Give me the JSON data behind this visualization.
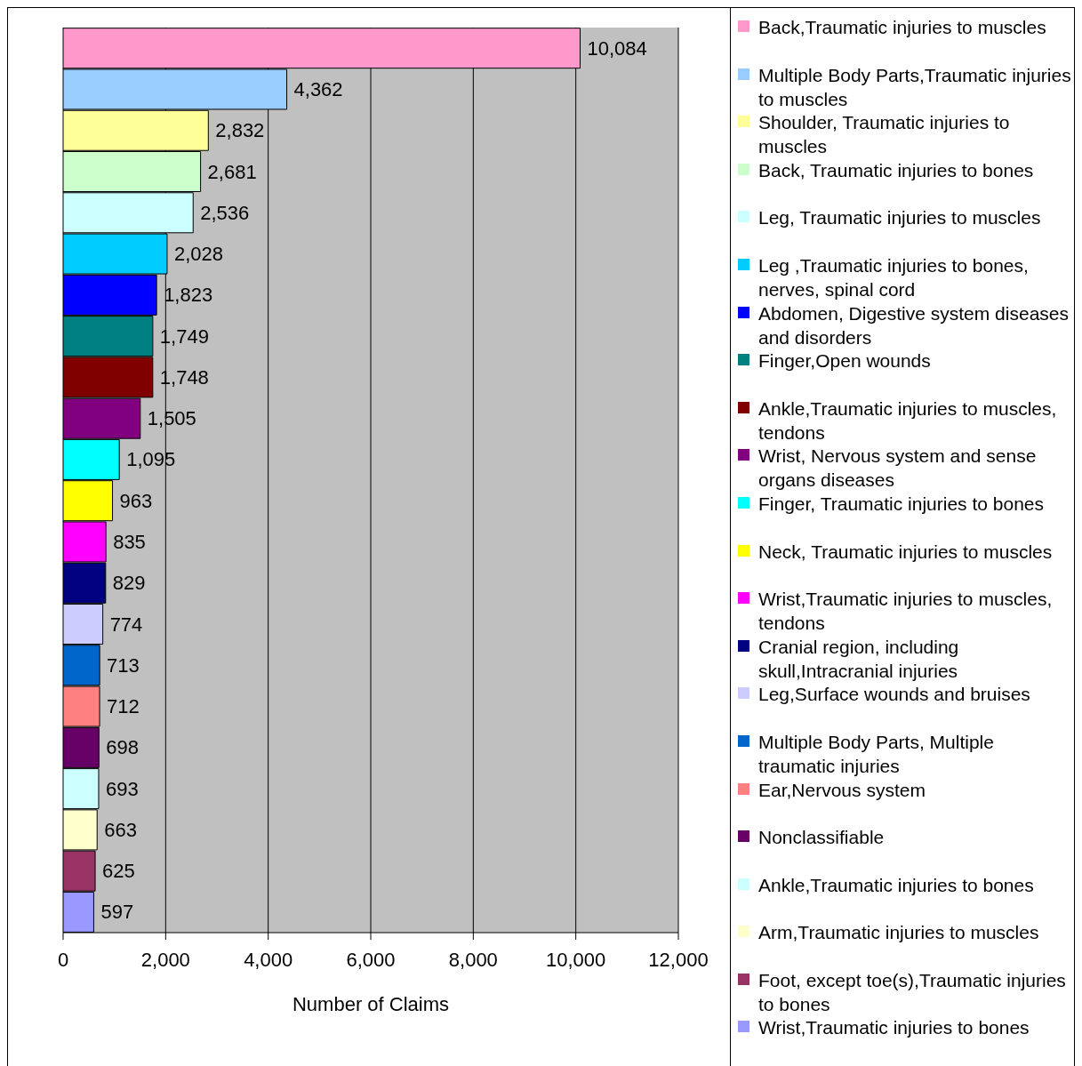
{
  "chart_data": {
    "type": "bar",
    "orientation": "horizontal",
    "xlabel": "Number of Claims",
    "categories": [
      null,
      null,
      null,
      null,
      null,
      null,
      null,
      null,
      null,
      null,
      null,
      null,
      null,
      null,
      null,
      null,
      null,
      null,
      null,
      null,
      null,
      null
    ],
    "series": [
      {
        "name": "Back,Traumatic injuries to muscles",
        "color": "#ff99cc",
        "values": [
          10084,
          null,
          null,
          null,
          null,
          null,
          null,
          null,
          null,
          null,
          null,
          null,
          null,
          null,
          null,
          null,
          null,
          null,
          null,
          null,
          null,
          null
        ],
        "value_labels": [
          "10,084",
          null,
          null,
          null,
          null,
          null,
          null,
          null,
          null,
          null,
          null,
          null,
          null,
          null,
          null,
          null,
          null,
          null,
          null,
          null,
          null,
          null
        ]
      },
      {
        "name": "Multiple Body Parts,Traumatic injuries to muscles",
        "color": "#99ccff",
        "values": [
          null,
          4362,
          null,
          null,
          null,
          null,
          null,
          null,
          null,
          null,
          null,
          null,
          null,
          null,
          null,
          null,
          null,
          null,
          null,
          null,
          null,
          null
        ],
        "value_labels": [
          null,
          "4,362",
          null,
          null,
          null,
          null,
          null,
          null,
          null,
          null,
          null,
          null,
          null,
          null,
          null,
          null,
          null,
          null,
          null,
          null,
          null,
          null
        ]
      },
      {
        "name": "Shoulder, Traumatic injuries to muscles",
        "color": "#ffff99",
        "values": [
          null,
          null,
          2832,
          null,
          null,
          null,
          null,
          null,
          null,
          null,
          null,
          null,
          null,
          null,
          null,
          null,
          null,
          null,
          null,
          null,
          null,
          null
        ],
        "value_labels": [
          null,
          null,
          "2,832",
          null,
          null,
          null,
          null,
          null,
          null,
          null,
          null,
          null,
          null,
          null,
          null,
          null,
          null,
          null,
          null,
          null,
          null,
          null
        ]
      },
      {
        "name": "Back, Traumatic injuries to bones",
        "color": "#ccffcc",
        "values": [
          null,
          null,
          null,
          2681,
          null,
          null,
          null,
          null,
          null,
          null,
          null,
          null,
          null,
          null,
          null,
          null,
          null,
          null,
          null,
          null,
          null,
          null
        ],
        "value_labels": [
          null,
          null,
          null,
          "2,681",
          null,
          null,
          null,
          null,
          null,
          null,
          null,
          null,
          null,
          null,
          null,
          null,
          null,
          null,
          null,
          null,
          null,
          null
        ]
      },
      {
        "name": "Leg, Traumatic injuries to muscles",
        "color": "#ccffff",
        "values": [
          null,
          null,
          null,
          null,
          2536,
          null,
          null,
          null,
          null,
          null,
          null,
          null,
          null,
          null,
          null,
          null,
          null,
          null,
          null,
          null,
          null,
          null
        ],
        "value_labels": [
          null,
          null,
          null,
          null,
          "2,536",
          null,
          null,
          null,
          null,
          null,
          null,
          null,
          null,
          null,
          null,
          null,
          null,
          null,
          null,
          null,
          null,
          null
        ]
      },
      {
        "name": "Leg ,Traumatic injuries to bones, nerves, spinal cord",
        "color": "#00ccff",
        "values": [
          null,
          null,
          null,
          null,
          null,
          2028,
          null,
          null,
          null,
          null,
          null,
          null,
          null,
          null,
          null,
          null,
          null,
          null,
          null,
          null,
          null,
          null
        ],
        "value_labels": [
          null,
          null,
          null,
          null,
          null,
          "2,028",
          null,
          null,
          null,
          null,
          null,
          null,
          null,
          null,
          null,
          null,
          null,
          null,
          null,
          null,
          null,
          null
        ]
      },
      {
        "name": "Abdomen, Digestive system diseases and disorders",
        "color": "#0000ff",
        "values": [
          null,
          null,
          null,
          null,
          null,
          null,
          1823,
          null,
          null,
          null,
          null,
          null,
          null,
          null,
          null,
          null,
          null,
          null,
          null,
          null,
          null,
          null
        ],
        "value_labels": [
          null,
          null,
          null,
          null,
          null,
          null,
          "1,823",
          null,
          null,
          null,
          null,
          null,
          null,
          null,
          null,
          null,
          null,
          null,
          null,
          null,
          null,
          null
        ]
      },
      {
        "name": "Finger,Open wounds",
        "color": "#008080",
        "values": [
          null,
          null,
          null,
          null,
          null,
          null,
          null,
          1749,
          null,
          null,
          null,
          null,
          null,
          null,
          null,
          null,
          null,
          null,
          null,
          null,
          null,
          null
        ],
        "value_labels": [
          null,
          null,
          null,
          null,
          null,
          null,
          null,
          "1,749",
          null,
          null,
          null,
          null,
          null,
          null,
          null,
          null,
          null,
          null,
          null,
          null,
          null,
          null
        ]
      },
      {
        "name": "Ankle,Traumatic injuries to muscles, tendons",
        "color": "#800000",
        "values": [
          null,
          null,
          null,
          null,
          null,
          null,
          null,
          null,
          1748,
          null,
          null,
          null,
          null,
          null,
          null,
          null,
          null,
          null,
          null,
          null,
          null,
          null
        ],
        "value_labels": [
          null,
          null,
          null,
          null,
          null,
          null,
          null,
          null,
          "1,748",
          null,
          null,
          null,
          null,
          null,
          null,
          null,
          null,
          null,
          null,
          null,
          null,
          null
        ]
      },
      {
        "name": "Wrist, Nervous system and sense organs diseases",
        "color": "#800080",
        "values": [
          null,
          null,
          null,
          null,
          null,
          null,
          null,
          null,
          null,
          1505,
          null,
          null,
          null,
          null,
          null,
          null,
          null,
          null,
          null,
          null,
          null,
          null
        ],
        "value_labels": [
          null,
          null,
          null,
          null,
          null,
          null,
          null,
          null,
          null,
          "1,505",
          null,
          null,
          null,
          null,
          null,
          null,
          null,
          null,
          null,
          null,
          null,
          null
        ]
      },
      {
        "name": "Finger, Traumatic injuries to bones",
        "color": "#00ffff",
        "values": [
          null,
          null,
          null,
          null,
          null,
          null,
          null,
          null,
          null,
          null,
          1095,
          null,
          null,
          null,
          null,
          null,
          null,
          null,
          null,
          null,
          null,
          null
        ],
        "value_labels": [
          null,
          null,
          null,
          null,
          null,
          null,
          null,
          null,
          null,
          null,
          "1,095",
          null,
          null,
          null,
          null,
          null,
          null,
          null,
          null,
          null,
          null,
          null
        ]
      },
      {
        "name": "Neck, Traumatic injuries to muscles",
        "color": "#ffff00",
        "values": [
          null,
          null,
          null,
          null,
          null,
          null,
          null,
          null,
          null,
          null,
          null,
          963,
          null,
          null,
          null,
          null,
          null,
          null,
          null,
          null,
          null,
          null
        ],
        "value_labels": [
          null,
          null,
          null,
          null,
          null,
          null,
          null,
          null,
          null,
          null,
          null,
          "963",
          null,
          null,
          null,
          null,
          null,
          null,
          null,
          null,
          null,
          null
        ]
      },
      {
        "name": "Wrist,Traumatic injuries to muscles, tendons",
        "color": "#ff00ff",
        "values": [
          null,
          null,
          null,
          null,
          null,
          null,
          null,
          null,
          null,
          null,
          null,
          null,
          835,
          null,
          null,
          null,
          null,
          null,
          null,
          null,
          null,
          null
        ],
        "value_labels": [
          null,
          null,
          null,
          null,
          null,
          null,
          null,
          null,
          null,
          null,
          null,
          null,
          "835",
          null,
          null,
          null,
          null,
          null,
          null,
          null,
          null,
          null
        ]
      },
      {
        "name": "Cranial region, including skull,Intracranial injuries",
        "color": "#000080",
        "values": [
          null,
          null,
          null,
          null,
          null,
          null,
          null,
          null,
          null,
          null,
          null,
          null,
          null,
          829,
          null,
          null,
          null,
          null,
          null,
          null,
          null,
          null
        ],
        "value_labels": [
          null,
          null,
          null,
          null,
          null,
          null,
          null,
          null,
          null,
          null,
          null,
          null,
          null,
          "829",
          null,
          null,
          null,
          null,
          null,
          null,
          null,
          null
        ]
      },
      {
        "name": "Leg,Surface wounds and bruises",
        "color": "#ccccff",
        "values": [
          null,
          null,
          null,
          null,
          null,
          null,
          null,
          null,
          null,
          null,
          null,
          null,
          null,
          null,
          774,
          null,
          null,
          null,
          null,
          null,
          null,
          null
        ],
        "value_labels": [
          null,
          null,
          null,
          null,
          null,
          null,
          null,
          null,
          null,
          null,
          null,
          null,
          null,
          null,
          "774",
          null,
          null,
          null,
          null,
          null,
          null,
          null
        ]
      },
      {
        "name": "Multiple Body Parts, Multiple traumatic injuries",
        "color": "#0066cc",
        "values": [
          null,
          null,
          null,
          null,
          null,
          null,
          null,
          null,
          null,
          null,
          null,
          null,
          null,
          null,
          null,
          713,
          null,
          null,
          null,
          null,
          null,
          null
        ],
        "value_labels": [
          null,
          null,
          null,
          null,
          null,
          null,
          null,
          null,
          null,
          null,
          null,
          null,
          null,
          null,
          null,
          "713",
          null,
          null,
          null,
          null,
          null,
          null
        ]
      },
      {
        "name": "Ear,Nervous system",
        "color": "#ff8080",
        "values": [
          null,
          null,
          null,
          null,
          null,
          null,
          null,
          null,
          null,
          null,
          null,
          null,
          null,
          null,
          null,
          null,
          712,
          null,
          null,
          null,
          null,
          null
        ],
        "value_labels": [
          null,
          null,
          null,
          null,
          null,
          null,
          null,
          null,
          null,
          null,
          null,
          null,
          null,
          null,
          null,
          null,
          "712",
          null,
          null,
          null,
          null,
          null
        ]
      },
      {
        "name": "Nonclassifiable",
        "color": "#660066",
        "values": [
          null,
          null,
          null,
          null,
          null,
          null,
          null,
          null,
          null,
          null,
          null,
          null,
          null,
          null,
          null,
          null,
          null,
          698,
          null,
          null,
          null,
          null
        ],
        "value_labels": [
          null,
          null,
          null,
          null,
          null,
          null,
          null,
          null,
          null,
          null,
          null,
          null,
          null,
          null,
          null,
          null,
          null,
          "698",
          null,
          null,
          null,
          null
        ]
      },
      {
        "name": "Ankle,Traumatic injuries to bones",
        "color": "#ccffff",
        "values": [
          null,
          null,
          null,
          null,
          null,
          null,
          null,
          null,
          null,
          null,
          null,
          null,
          null,
          null,
          null,
          null,
          null,
          null,
          693,
          null,
          null,
          null
        ],
        "value_labels": [
          null,
          null,
          null,
          null,
          null,
          null,
          null,
          null,
          null,
          null,
          null,
          null,
          null,
          null,
          null,
          null,
          null,
          null,
          "693",
          null,
          null,
          null
        ]
      },
      {
        "name": "Arm,Traumatic injuries to muscles",
        "color": "#ffffcc",
        "values": [
          null,
          null,
          null,
          null,
          null,
          null,
          null,
          null,
          null,
          null,
          null,
          null,
          null,
          null,
          null,
          null,
          null,
          null,
          null,
          663,
          null,
          null
        ],
        "value_labels": [
          null,
          null,
          null,
          null,
          null,
          null,
          null,
          null,
          null,
          null,
          null,
          null,
          null,
          null,
          null,
          null,
          null,
          null,
          null,
          "663",
          null,
          null
        ]
      },
      {
        "name": "Foot, except toe(s),Traumatic injuries to bones",
        "color": "#993366",
        "values": [
          null,
          null,
          null,
          null,
          null,
          null,
          null,
          null,
          null,
          null,
          null,
          null,
          null,
          null,
          null,
          null,
          null,
          null,
          null,
          null,
          625,
          null
        ],
        "value_labels": [
          null,
          null,
          null,
          null,
          null,
          null,
          null,
          null,
          null,
          null,
          null,
          null,
          null,
          null,
          null,
          null,
          null,
          null,
          null,
          null,
          "625",
          null
        ]
      },
      {
        "name": "Wrist,Traumatic injuries to bones",
        "color": "#9999ff",
        "values": [
          null,
          null,
          null,
          null,
          null,
          null,
          null,
          null,
          null,
          null,
          null,
          null,
          null,
          null,
          null,
          null,
          null,
          null,
          null,
          null,
          null,
          597
        ],
        "value_labels": [
          null,
          null,
          null,
          null,
          null,
          null,
          null,
          null,
          null,
          null,
          null,
          null,
          null,
          null,
          null,
          null,
          null,
          null,
          null,
          null,
          null,
          "597"
        ]
      }
    ],
    "xlim": [
      0,
      12000
    ],
    "xticks": [
      {
        "value": 0,
        "label": "0"
      },
      {
        "value": 2000,
        "label": "2,000"
      },
      {
        "value": 4000,
        "label": "4,000"
      },
      {
        "value": 6000,
        "label": "6,000"
      },
      {
        "value": 8000,
        "label": "8,000"
      },
      {
        "value": 10000,
        "label": "10,000"
      },
      {
        "value": 12000,
        "label": "12,000"
      }
    ],
    "grid": "x",
    "legend": "right",
    "tick_labels": "x"
  }
}
